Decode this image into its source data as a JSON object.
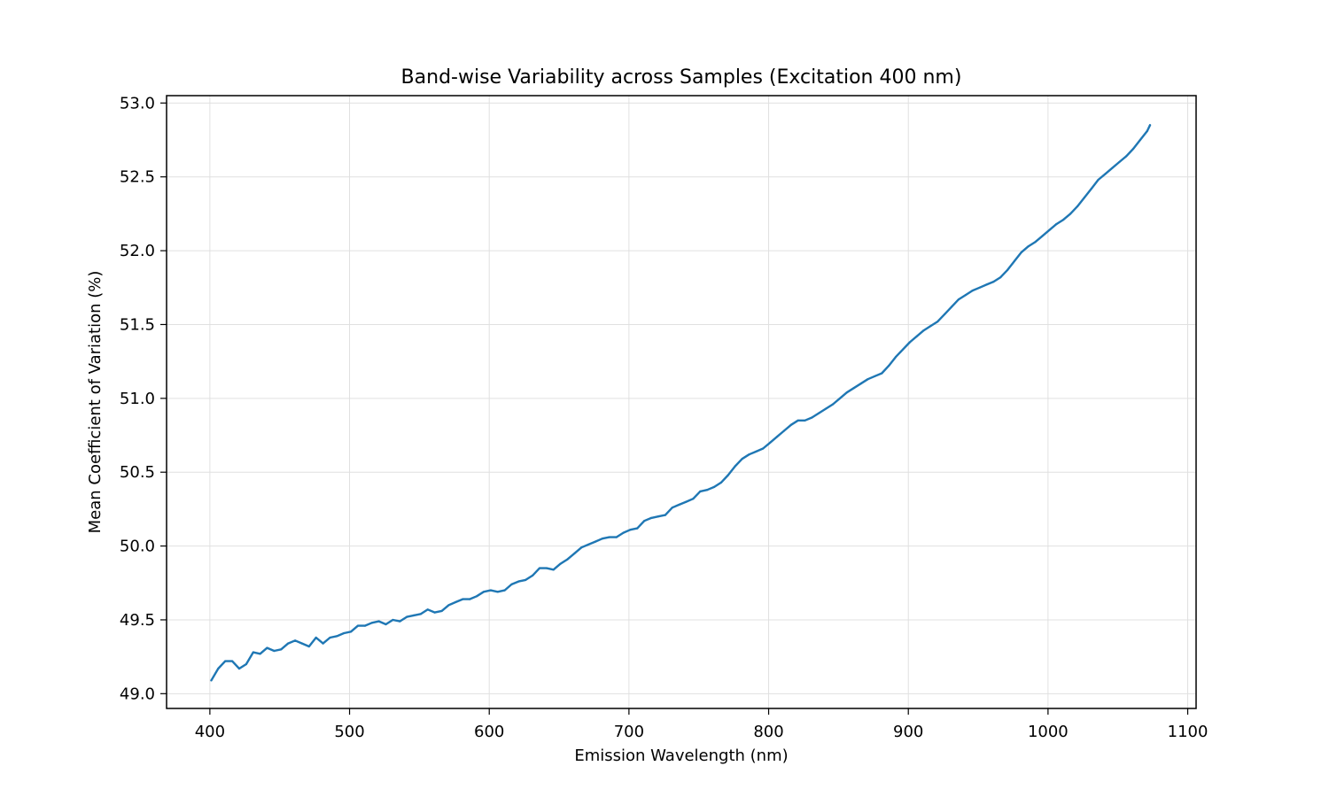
{
  "chart_data": {
    "type": "line",
    "title": "Band-wise Variability across Samples (Excitation 400 nm)",
    "xlabel": "Emission Wavelength (nm)",
    "ylabel": "Mean Coefficient of Variation (%)",
    "xlim": [
      369,
      1106
    ],
    "ylim": [
      48.9,
      53.05
    ],
    "xticks": [
      400,
      500,
      600,
      700,
      800,
      900,
      1000,
      1100
    ],
    "yticks": [
      49.0,
      49.5,
      50.0,
      50.5,
      51.0,
      51.5,
      52.0,
      52.5,
      53.0
    ],
    "xtick_labels": [
      "400",
      "500",
      "600",
      "700",
      "800",
      "900",
      "1000",
      "1100"
    ],
    "ytick_labels": [
      "49.0",
      "49.5",
      "50.0",
      "50.5",
      "51.0",
      "51.5",
      "52.0",
      "52.5",
      "53.0"
    ],
    "grid": true,
    "series": [
      {
        "color": "#1f77b4",
        "x": [
          401,
          406,
          411,
          416,
          421,
          426,
          431,
          436,
          441,
          446,
          451,
          456,
          461,
          466,
          471,
          476,
          481,
          486,
          491,
          496,
          501,
          506,
          511,
          516,
          521,
          526,
          531,
          536,
          541,
          546,
          551,
          556,
          561,
          566,
          571,
          576,
          581,
          586,
          591,
          596,
          601,
          606,
          611,
          616,
          621,
          626,
          631,
          636,
          641,
          646,
          651,
          656,
          661,
          666,
          671,
          676,
          681,
          686,
          691,
          696,
          701,
          706,
          711,
          716,
          721,
          726,
          731,
          736,
          741,
          746,
          751,
          756,
          761,
          766,
          771,
          776,
          781,
          786,
          791,
          796,
          801,
          806,
          811,
          816,
          821,
          826,
          831,
          836,
          841,
          846,
          851,
          856,
          861,
          866,
          871,
          876,
          881,
          886,
          891,
          896,
          901,
          906,
          911,
          916,
          921,
          926,
          931,
          936,
          941,
          946,
          951,
          956,
          961,
          966,
          971,
          976,
          981,
          986,
          991,
          996,
          1001,
          1006,
          1011,
          1016,
          1021,
          1026,
          1031,
          1036,
          1041,
          1046,
          1051,
          1056,
          1061,
          1066,
          1071,
          1073
        ],
        "y": [
          49.09,
          49.17,
          49.22,
          49.22,
          49.17,
          49.2,
          49.28,
          49.27,
          49.31,
          49.29,
          49.3,
          49.34,
          49.36,
          49.34,
          49.32,
          49.38,
          49.34,
          49.38,
          49.39,
          49.41,
          49.42,
          49.46,
          49.46,
          49.48,
          49.49,
          49.47,
          49.5,
          49.49,
          49.52,
          49.53,
          49.54,
          49.57,
          49.55,
          49.56,
          49.6,
          49.62,
          49.64,
          49.64,
          49.66,
          49.69,
          49.7,
          49.69,
          49.7,
          49.74,
          49.76,
          49.77,
          49.8,
          49.85,
          49.85,
          49.84,
          49.88,
          49.91,
          49.95,
          49.99,
          50.01,
          50.03,
          50.05,
          50.06,
          50.06,
          50.09,
          50.11,
          50.12,
          50.17,
          50.19,
          50.2,
          50.21,
          50.26,
          50.28,
          50.3,
          50.32,
          50.37,
          50.38,
          50.4,
          50.43,
          50.48,
          50.54,
          50.59,
          50.62,
          50.64,
          50.66,
          50.7,
          50.74,
          50.78,
          50.82,
          50.85,
          50.85,
          50.87,
          50.9,
          50.93,
          50.96,
          51.0,
          51.04,
          51.07,
          51.1,
          51.13,
          51.15,
          51.17,
          51.22,
          51.28,
          51.33,
          51.38,
          51.42,
          51.46,
          51.49,
          51.52,
          51.57,
          51.62,
          51.67,
          51.7,
          51.73,
          51.75,
          51.77,
          51.79,
          51.82,
          51.87,
          51.93,
          51.99,
          52.03,
          52.06,
          52.1,
          52.14,
          52.18,
          52.21,
          52.25,
          52.3,
          52.36,
          52.42,
          52.48,
          52.52,
          52.56,
          52.6,
          52.64,
          52.69,
          52.75,
          52.81,
          52.85
        ]
      }
    ]
  }
}
